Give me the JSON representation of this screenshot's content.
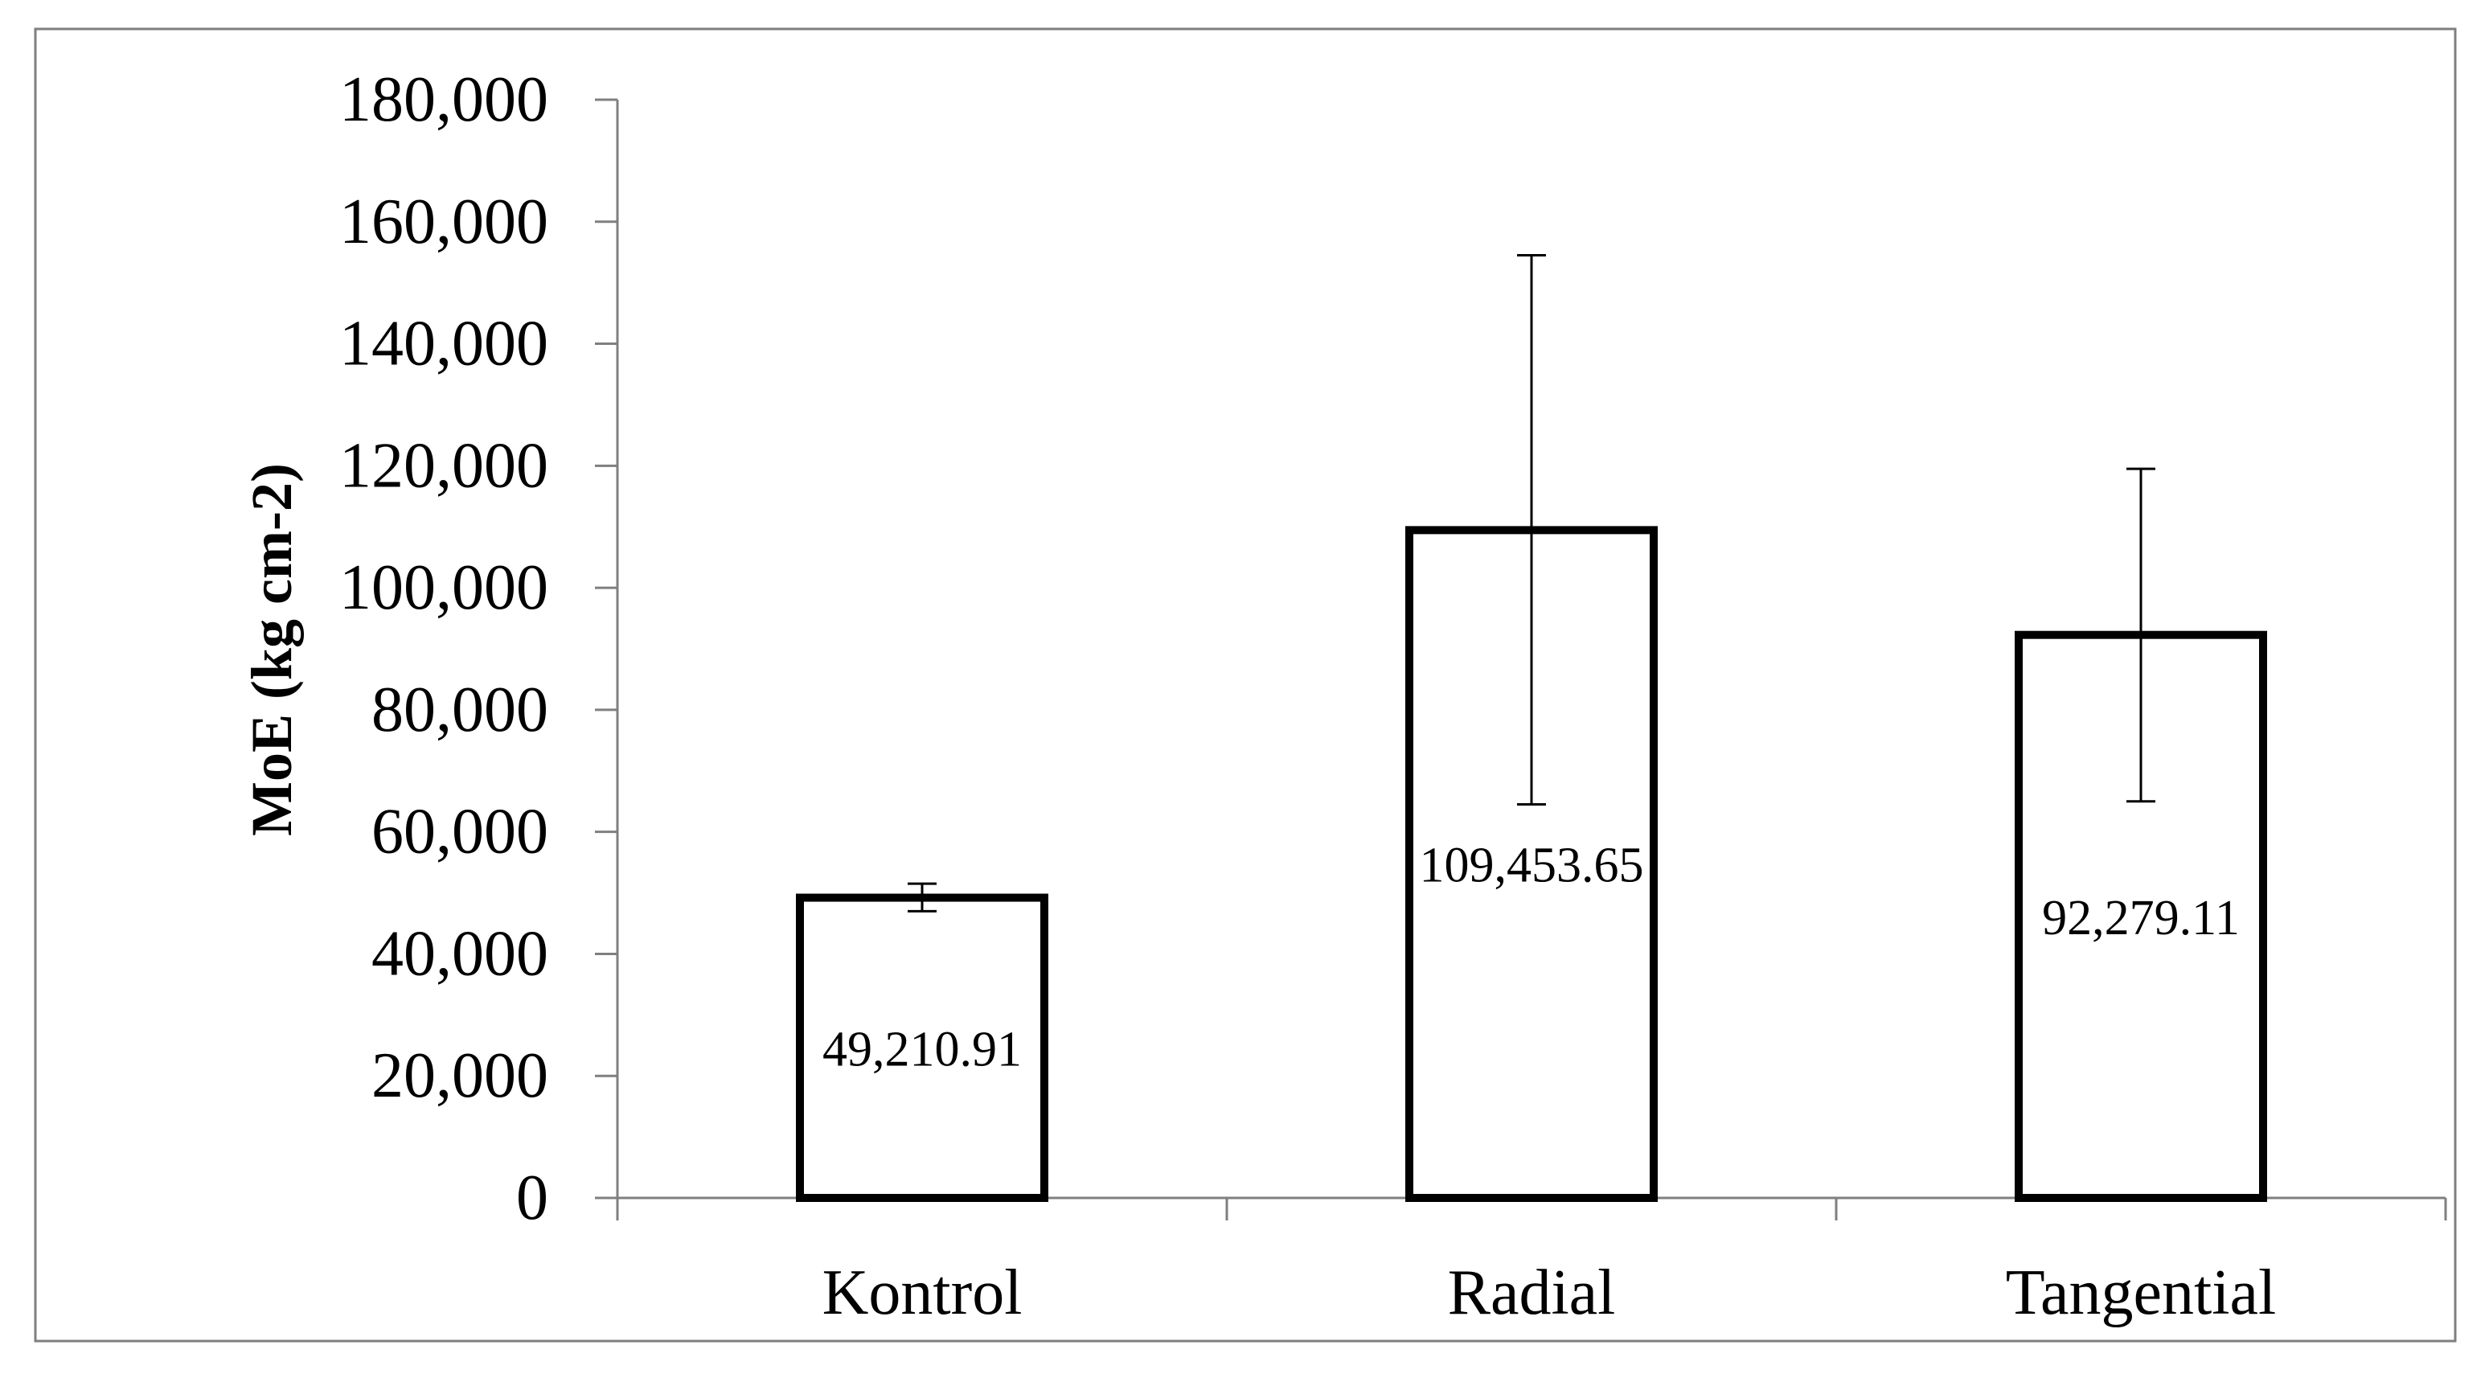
{
  "chart_data": {
    "type": "bar",
    "title": "",
    "xlabel": "",
    "ylabel": "MoE (kg cm-2)",
    "categories": [
      "Kontrol",
      "Radial",
      "Tangential"
    ],
    "values": [
      49210.91,
      109453.65,
      92279.11
    ],
    "data_labels": [
      "49,210.91",
      "109,453.65",
      "92,279.11"
    ],
    "error_bars": [
      {
        "low": 47000,
        "high": 51500
      },
      {
        "low": 64500,
        "high": 154500
      },
      {
        "low": 65000,
        "high": 119500
      }
    ],
    "ylim": [
      0,
      180000
    ],
    "y_ticks": [
      0,
      20000,
      40000,
      60000,
      80000,
      100000,
      120000,
      140000,
      160000,
      180000
    ],
    "y_tick_labels": [
      "0",
      "20,000",
      "40,000",
      "60,000",
      "80,000",
      "100,000",
      "120,000",
      "140,000",
      "160,000",
      "180,000"
    ],
    "grid": false,
    "legend": "none",
    "bar_fill": "#ffffff",
    "bar_stroke": "#000000"
  }
}
